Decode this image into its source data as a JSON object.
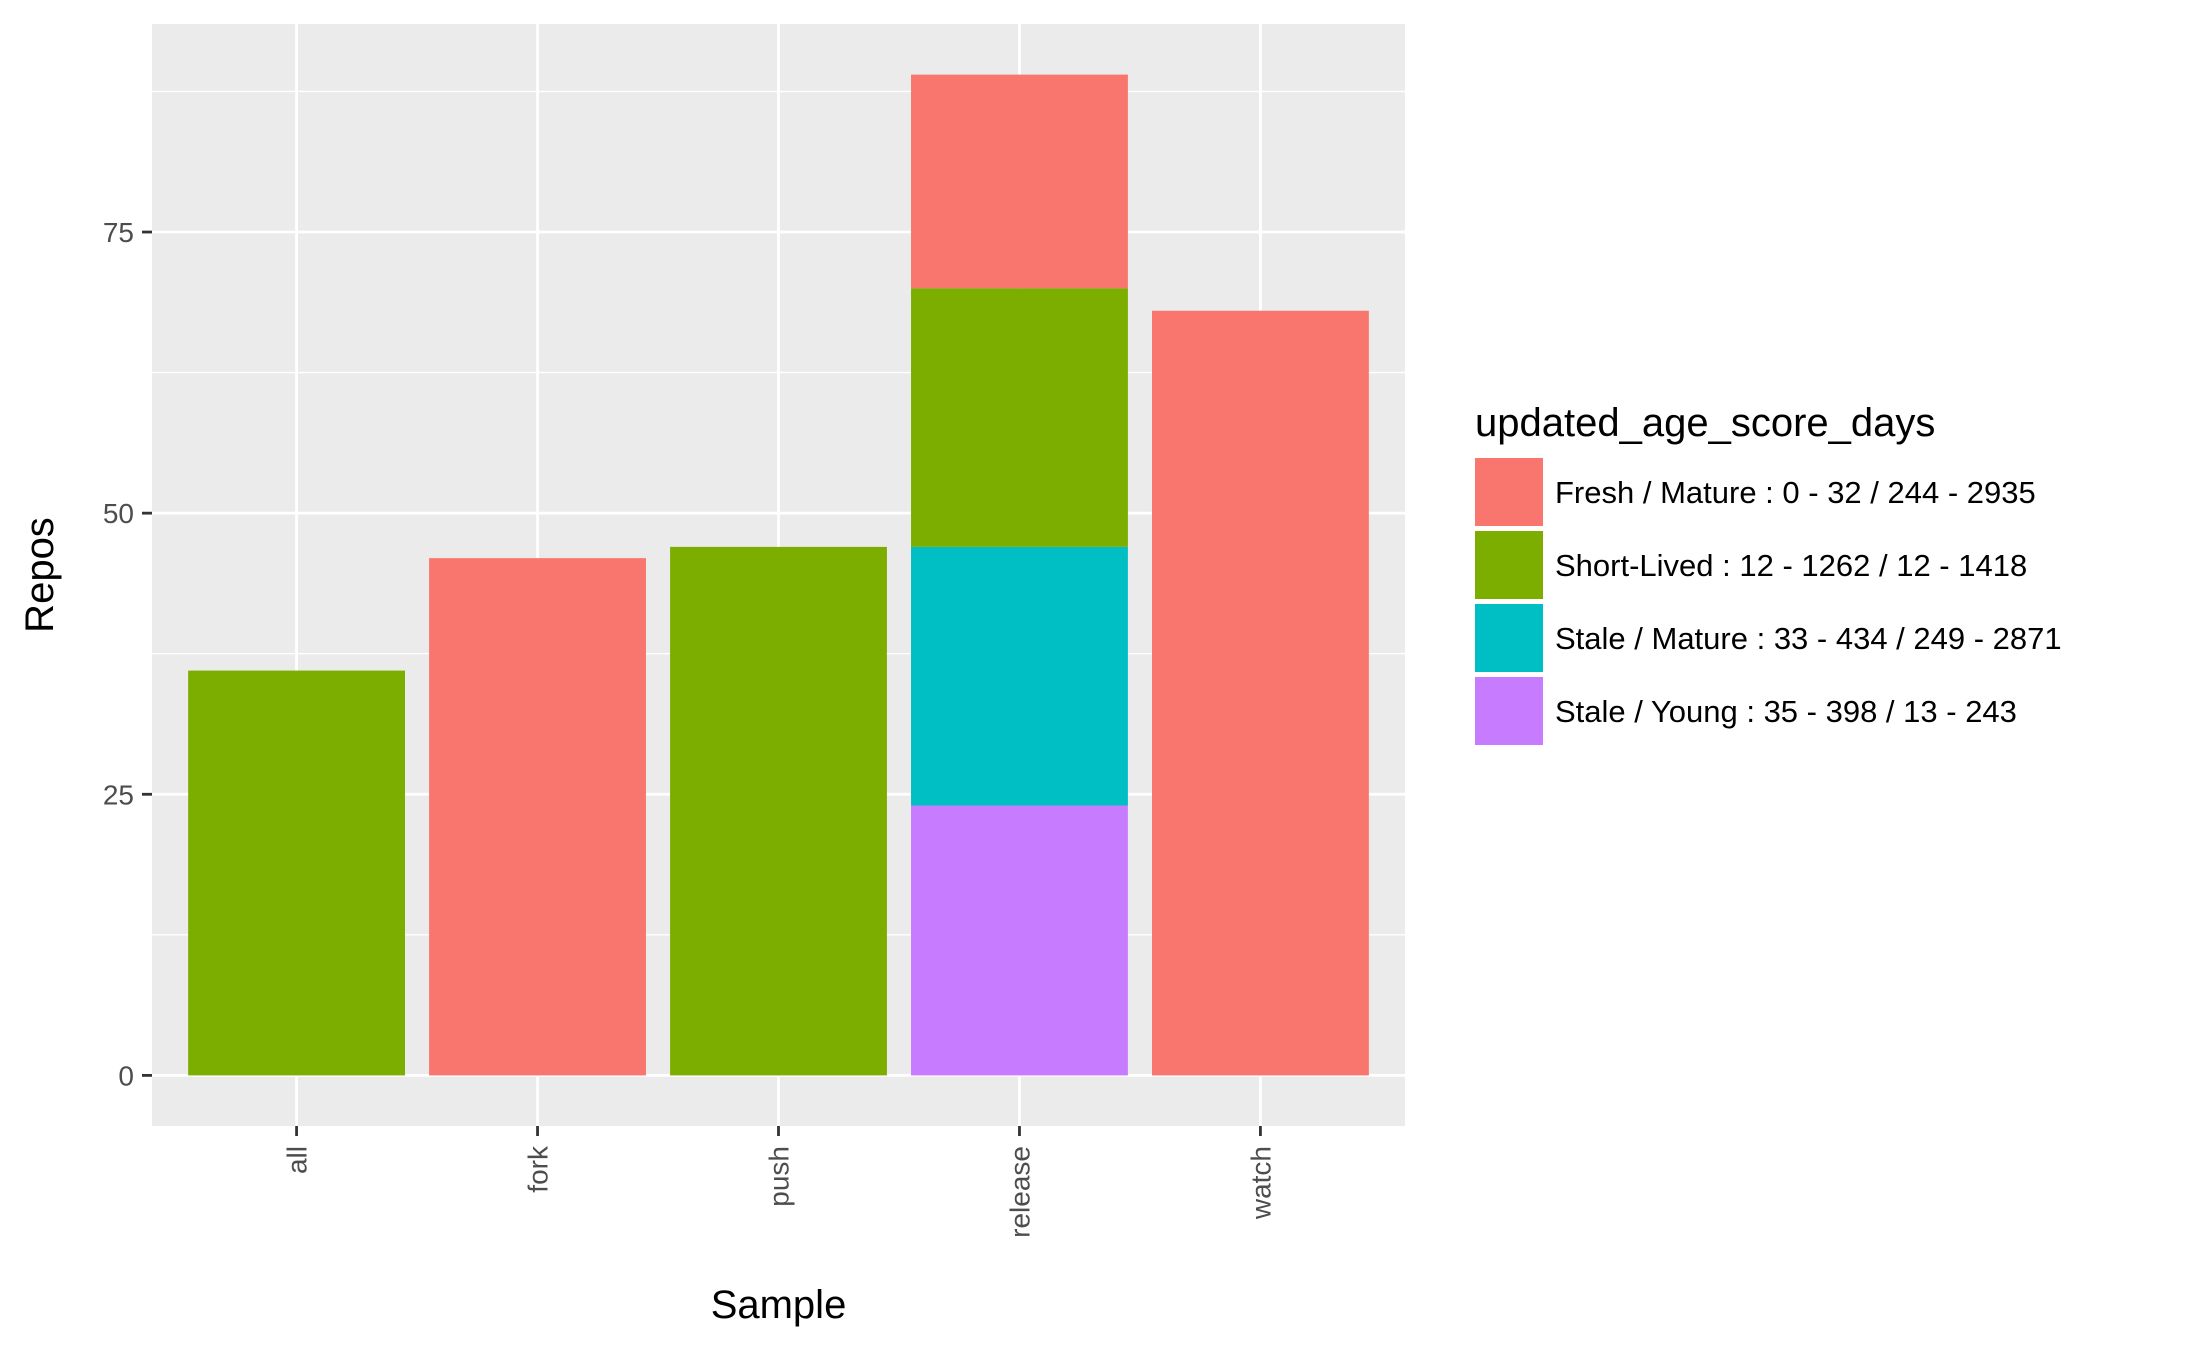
{
  "chart_data": {
    "type": "bar",
    "stacked": true,
    "title": "",
    "xlabel": "Sample",
    "ylabel": "Repos",
    "categories": [
      "all",
      "fork",
      "push",
      "release",
      "watch"
    ],
    "ylim": [
      -4.5,
      93.5
    ],
    "yticks": [
      0,
      25,
      50,
      75
    ],
    "grid": true,
    "legend_position": "right",
    "legend_title": "updated_age_score_days",
    "series": [
      {
        "name": "Stale / Young : 35 - 398 / 13 - 243",
        "color": "#C77CFF",
        "values": [
          0,
          0,
          0,
          24,
          0
        ]
      },
      {
        "name": "Stale / Mature : 33 - 434 / 249 - 2871",
        "color": "#00BFC4",
        "values": [
          0,
          0,
          0,
          23,
          0
        ]
      },
      {
        "name": "Short-Lived : 12 - 1262 / 12 - 1418",
        "color": "#7CAE00",
        "values": [
          36,
          0,
          47,
          23,
          0
        ]
      },
      {
        "name": "Fresh / Mature : 0 - 32 / 244 - 2935",
        "color": "#F8766D",
        "values": [
          0,
          46,
          0,
          19,
          68
        ]
      }
    ],
    "legend_order": [
      3,
      2,
      1,
      0
    ],
    "panel_background": "#EBEBEB",
    "grid_color": "#FFFFFF"
  }
}
